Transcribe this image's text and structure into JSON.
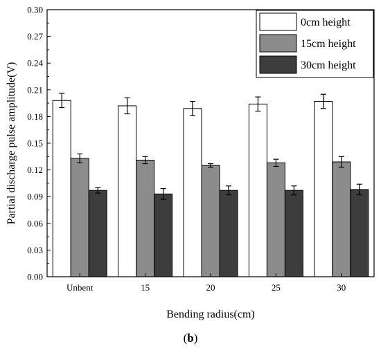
{
  "chart_data": {
    "type": "bar",
    "categories": [
      "Unbent",
      "15",
      "20",
      "25",
      "30"
    ],
    "series": [
      {
        "name": "0cm height",
        "color": "#ffffff",
        "values": [
          0.198,
          0.192,
          0.189,
          0.194,
          0.197
        ],
        "errors": [
          0.008,
          0.009,
          0.008,
          0.008,
          0.008
        ]
      },
      {
        "name": "15cm height",
        "color": "#8c8c8c",
        "values": [
          0.133,
          0.131,
          0.125,
          0.128,
          0.129
        ],
        "errors": [
          0.005,
          0.004,
          0.002,
          0.004,
          0.006
        ]
      },
      {
        "name": "30cm height",
        "color": "#3d3d3d",
        "values": [
          0.097,
          0.093,
          0.097,
          0.097,
          0.098
        ],
        "errors": [
          0.003,
          0.006,
          0.005,
          0.005,
          0.006
        ]
      }
    ],
    "xlabel": "Bending radius(cm)",
    "ylabel": "Partial discharge pulse amplitude(V)",
    "ylim": [
      0,
      0.3
    ],
    "yticks": [
      "0.00",
      "0.03",
      "0.06",
      "0.09",
      "0.12",
      "0.15",
      "0.18",
      "0.21",
      "0.24",
      "0.27",
      "0.30"
    ],
    "legend_position": "top-right",
    "grid": false
  },
  "caption": {
    "open": "(",
    "letter": "b",
    "close": ")"
  }
}
